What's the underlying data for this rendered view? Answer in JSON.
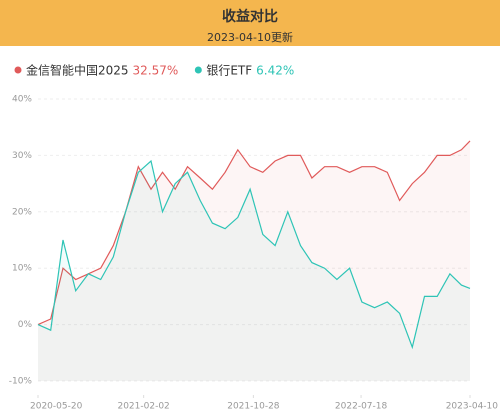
{
  "chart_data": {
    "type": "line",
    "title": "收益对比",
    "subtitle": "2023-04-10更新",
    "x": [
      "2020-05-20",
      "2020-06-20",
      "2020-07-20",
      "2020-08-20",
      "2020-09-20",
      "2020-10-20",
      "2020-11-20",
      "2020-12-20",
      "2021-01-20",
      "2021-02-20",
      "2021-03-20",
      "2021-04-20",
      "2021-05-20",
      "2021-06-20",
      "2021-07-20",
      "2021-08-20",
      "2021-09-20",
      "2021-10-20",
      "2021-11-20",
      "2021-12-20",
      "2022-01-20",
      "2022-02-20",
      "2022-03-20",
      "2022-04-20",
      "2022-05-20",
      "2022-06-20",
      "2022-07-20",
      "2022-08-20",
      "2022-09-20",
      "2022-10-20",
      "2022-11-20",
      "2022-12-20",
      "2023-01-20",
      "2023-02-20",
      "2023-03-20",
      "2023-04-10"
    ],
    "series": [
      {
        "name": "金信智能中国2025",
        "legend_value": "32.57%",
        "color": "#e05a5a",
        "values": [
          0,
          1,
          10,
          8,
          9,
          10,
          14,
          20,
          28,
          24,
          27,
          24,
          28,
          26,
          24,
          27,
          31,
          28,
          27,
          29,
          30,
          30,
          26,
          28,
          28,
          27,
          28,
          28,
          27,
          22,
          25,
          27,
          30,
          30,
          31,
          32.57
        ]
      },
      {
        "name": "银行ETF",
        "legend_value": "6.42%",
        "color": "#2ec4b6",
        "values": [
          0,
          -1,
          15,
          6,
          9,
          8,
          12,
          20,
          27,
          29,
          20,
          25,
          27,
          22,
          18,
          17,
          19,
          24,
          16,
          14,
          20,
          14,
          11,
          10,
          8,
          10,
          4,
          3,
          4,
          2,
          -4,
          5,
          5,
          9,
          7,
          6.42
        ]
      }
    ],
    "xlim": [
      "2020-05-20",
      "2023-04-10"
    ],
    "xticks": [
      "2020-05-20",
      "2021-02-02",
      "2021-10-28",
      "2022-07-18",
      "2023-04-10"
    ],
    "ylim": [
      -10,
      40
    ],
    "yticks": [
      {
        "value": -10,
        "label": "-10%"
      },
      {
        "value": 0,
        "label": "0%"
      },
      {
        "value": 10,
        "label": "10%"
      },
      {
        "value": 20,
        "label": "20%"
      },
      {
        "value": 30,
        "label": "30%"
      },
      {
        "value": 40,
        "label": "40%"
      }
    ],
    "grid": true
  }
}
